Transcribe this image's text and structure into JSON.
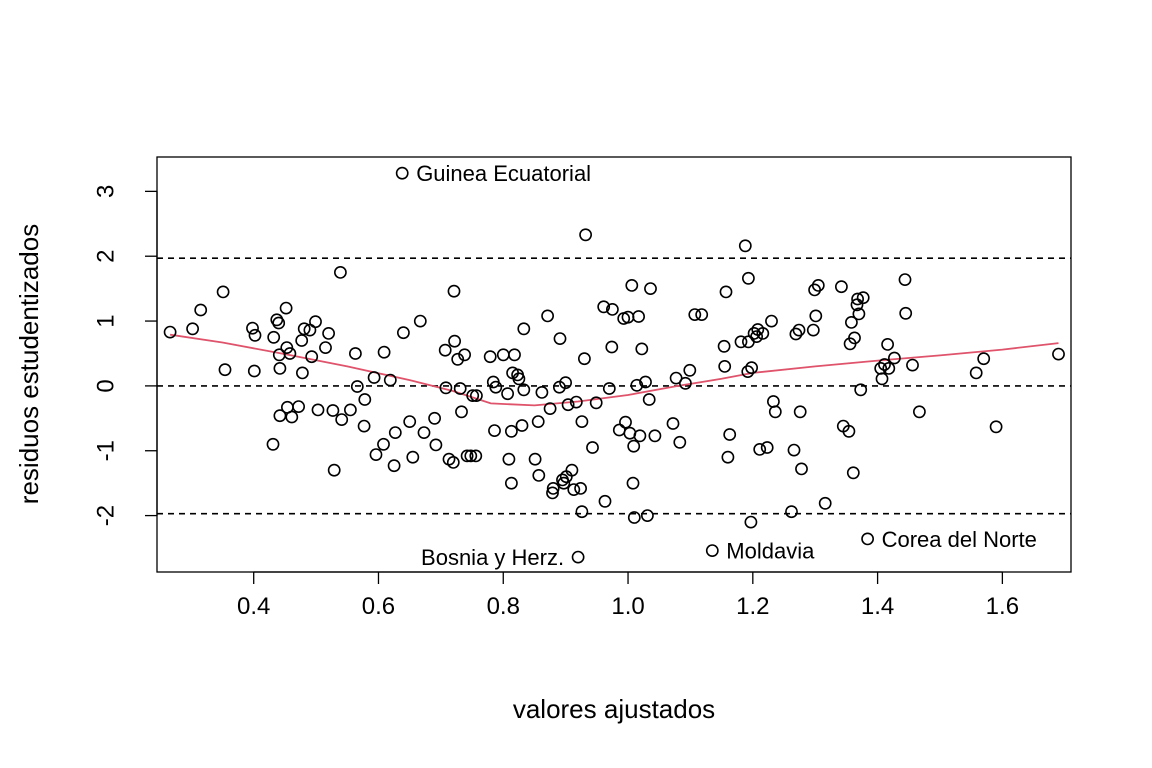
{
  "chart_data": {
    "type": "scatter",
    "title": "",
    "xlabel": "valores ajustados",
    "ylabel": "residuos estudentizados",
    "xlim": [
      0.245,
      1.71
    ],
    "ylim": [
      -2.87,
      3.53
    ],
    "xticks": [
      0.4,
      0.6,
      0.8,
      1.0,
      1.2,
      1.4,
      1.6
    ],
    "xtick_labels": [
      "0.4",
      "0.6",
      "0.8",
      "1.0",
      "1.2",
      "1.4",
      "1.6"
    ],
    "yticks": [
      -2,
      -1,
      0,
      1,
      2,
      3
    ],
    "ytick_labels": [
      "-2",
      "-1",
      "0",
      "1",
      "2",
      "3"
    ],
    "grid": false,
    "reference_lines": [
      1.97,
      0,
      -1.97
    ],
    "colors": {
      "points": "#000000",
      "smooth": "#DF536B",
      "reference": "#000000"
    },
    "points": [
      [
        0.266,
        0.83
      ],
      [
        0.302,
        0.88
      ],
      [
        0.315,
        1.17
      ],
      [
        0.351,
        1.45
      ],
      [
        0.354,
        0.25
      ],
      [
        0.398,
        0.89
      ],
      [
        0.402,
        0.78
      ],
      [
        0.401,
        0.23
      ],
      [
        0.431,
        -0.9
      ],
      [
        0.432,
        0.75
      ],
      [
        0.437,
        1.02
      ],
      [
        0.44,
        0.97
      ],
      [
        0.441,
        0.48
      ],
      [
        0.442,
        0.27
      ],
      [
        0.442,
        -0.46
      ],
      [
        0.452,
        1.2
      ],
      [
        0.453,
        0.59
      ],
      [
        0.454,
        -0.33
      ],
      [
        0.458,
        0.5
      ],
      [
        0.461,
        -0.48
      ],
      [
        0.472,
        -0.32
      ],
      [
        0.477,
        0.7
      ],
      [
        0.478,
        0.2
      ],
      [
        0.481,
        0.88
      ],
      [
        0.49,
        0.86
      ],
      [
        0.493,
        0.45
      ],
      [
        0.499,
        0.99
      ],
      [
        0.503,
        -0.37
      ],
      [
        0.515,
        0.59
      ],
      [
        0.52,
        0.81
      ],
      [
        0.527,
        -0.38
      ],
      [
        0.529,
        -1.3
      ],
      [
        0.539,
        1.75
      ],
      [
        0.541,
        -0.52
      ],
      [
        0.555,
        -0.37
      ],
      [
        0.563,
        0.5
      ],
      [
        0.566,
        -0.01
      ],
      [
        0.577,
        -0.62
      ],
      [
        0.578,
        -0.21
      ],
      [
        0.593,
        0.13
      ],
      [
        0.596,
        -1.06
      ],
      [
        0.608,
        -0.9
      ],
      [
        0.609,
        0.52
      ],
      [
        0.619,
        0.09
      ],
      [
        0.625,
        -1.23
      ],
      [
        0.627,
        -0.72
      ],
      [
        0.64,
        0.82
      ],
      [
        0.65,
        -0.55
      ],
      [
        0.655,
        -1.1
      ],
      [
        0.667,
        1.0
      ],
      [
        0.673,
        -0.72
      ],
      [
        0.69,
        -0.5
      ],
      [
        0.692,
        -0.91
      ],
      [
        0.707,
        0.55
      ],
      [
        0.708,
        -0.03
      ],
      [
        0.713,
        -1.13
      ],
      [
        0.72,
        -1.18
      ],
      [
        0.721,
        1.46
      ],
      [
        0.722,
        0.69
      ],
      [
        0.727,
        0.41
      ],
      [
        0.731,
        -0.04
      ],
      [
        0.733,
        -0.4
      ],
      [
        0.738,
        0.48
      ],
      [
        0.742,
        -1.08
      ],
      [
        0.748,
        -1.08
      ],
      [
        0.751,
        -0.15
      ],
      [
        0.756,
        -1.08
      ],
      [
        0.757,
        -0.15
      ],
      [
        0.779,
        0.45
      ],
      [
        0.784,
        0.06
      ],
      [
        0.786,
        -0.69
      ],
      [
        0.788,
        -0.02
      ],
      [
        0.8,
        0.48
      ],
      [
        0.807,
        -0.12
      ],
      [
        0.809,
        -1.13
      ],
      [
        0.813,
        -0.7
      ],
      [
        0.813,
        -1.5
      ],
      [
        0.815,
        0.2
      ],
      [
        0.818,
        0.48
      ],
      [
        0.823,
        0.17
      ],
      [
        0.825,
        0.11
      ],
      [
        0.83,
        -0.61
      ],
      [
        0.833,
        0.88
      ],
      [
        0.833,
        -0.06
      ],
      [
        0.851,
        -1.13
      ],
      [
        0.856,
        -0.55
      ],
      [
        0.857,
        -1.38
      ],
      [
        0.862,
        -0.1
      ],
      [
        0.871,
        1.08
      ],
      [
        0.875,
        -0.35
      ],
      [
        0.879,
        -1.65
      ],
      [
        0.88,
        -1.58
      ],
      [
        0.89,
        -0.02
      ],
      [
        0.891,
        0.73
      ],
      [
        0.895,
        -1.45
      ],
      [
        0.897,
        -1.5
      ],
      [
        0.9,
        0.05
      ],
      [
        0.901,
        -1.4
      ],
      [
        0.904,
        -0.29
      ],
      [
        0.91,
        -1.3
      ],
      [
        0.913,
        -1.6
      ],
      [
        0.917,
        -0.25
      ],
      [
        0.924,
        -1.58
      ],
      [
        0.926,
        -0.55
      ],
      [
        0.926,
        -1.94
      ],
      [
        0.93,
        0.42
      ],
      [
        0.932,
        2.33
      ],
      [
        0.943,
        -0.95
      ],
      [
        0.949,
        -0.26
      ],
      [
        0.961,
        1.22
      ],
      [
        0.963,
        -1.78
      ],
      [
        0.97,
        -0.04
      ],
      [
        0.974,
        0.6
      ],
      [
        0.975,
        1.18
      ],
      [
        0.986,
        -0.68
      ],
      [
        0.993,
        1.04
      ],
      [
        0.996,
        -0.56
      ],
      [
        1.0,
        1.06
      ],
      [
        1.003,
        -0.73
      ],
      [
        1.006,
        1.55
      ],
      [
        1.008,
        -1.5
      ],
      [
        1.009,
        -0.93
      ],
      [
        1.01,
        -2.03
      ],
      [
        1.014,
        0.01
      ],
      [
        1.017,
        1.07
      ],
      [
        1.019,
        -0.77
      ],
      [
        1.022,
        0.57
      ],
      [
        1.028,
        0.06
      ],
      [
        1.031,
        -2.0
      ],
      [
        1.034,
        -0.21
      ],
      [
        1.036,
        1.5
      ],
      [
        1.043,
        -0.77
      ],
      [
        1.072,
        -0.58
      ],
      [
        1.077,
        0.12
      ],
      [
        1.083,
        -0.87
      ],
      [
        1.092,
        0.04
      ],
      [
        1.099,
        0.24
      ],
      [
        1.107,
        1.1
      ],
      [
        1.118,
        1.1
      ],
      [
        1.154,
        0.61
      ],
      [
        1.155,
        0.3
      ],
      [
        1.157,
        1.45
      ],
      [
        1.16,
        -1.1
      ],
      [
        1.163,
        -0.75
      ],
      [
        1.181,
        0.68
      ],
      [
        1.188,
        2.16
      ],
      [
        1.192,
        0.22
      ],
      [
        1.193,
        1.66
      ],
      [
        1.193,
        0.68
      ],
      [
        1.197,
        -2.1
      ],
      [
        1.198,
        0.28
      ],
      [
        1.202,
        0.81
      ],
      [
        1.206,
        0.76
      ],
      [
        1.208,
        0.87
      ],
      [
        1.211,
        -0.98
      ],
      [
        1.216,
        0.81
      ],
      [
        1.223,
        -0.95
      ],
      [
        1.23,
        1.0
      ],
      [
        1.233,
        -0.24
      ],
      [
        1.236,
        -0.4
      ],
      [
        1.262,
        -1.94
      ],
      [
        1.266,
        -0.99
      ],
      [
        1.269,
        0.8
      ],
      [
        1.274,
        0.86
      ],
      [
        1.276,
        -0.4
      ],
      [
        1.278,
        -1.28
      ],
      [
        1.297,
        0.86
      ],
      [
        1.299,
        1.48
      ],
      [
        1.301,
        1.08
      ],
      [
        1.305,
        1.55
      ],
      [
        1.316,
        -1.81
      ],
      [
        1.342,
        1.53
      ],
      [
        1.345,
        -0.62
      ],
      [
        1.354,
        -0.7
      ],
      [
        1.356,
        0.65
      ],
      [
        1.358,
        0.98
      ],
      [
        1.361,
        -1.34
      ],
      [
        1.363,
        0.74
      ],
      [
        1.367,
        1.25
      ],
      [
        1.368,
        1.34
      ],
      [
        1.37,
        1.11
      ],
      [
        1.373,
        -0.06
      ],
      [
        1.377,
        1.36
      ],
      [
        1.405,
        0.27
      ],
      [
        1.407,
        0.11
      ],
      [
        1.411,
        0.33
      ],
      [
        1.416,
        0.64
      ],
      [
        1.418,
        0.27
      ],
      [
        1.427,
        0.43
      ],
      [
        1.444,
        1.64
      ],
      [
        1.445,
        1.12
      ],
      [
        1.456,
        0.32
      ],
      [
        1.467,
        -0.4
      ],
      [
        1.558,
        0.2
      ],
      [
        1.57,
        0.42
      ],
      [
        1.59,
        -0.63
      ],
      [
        1.69,
        0.49
      ],
      [
        0.638,
        3.28
      ],
      [
        0.92,
        -2.64
      ],
      [
        1.135,
        -2.54
      ],
      [
        1.384,
        -2.36
      ]
    ],
    "labeled_points": [
      {
        "label": "Guinea Ecuatorial",
        "x": 0.638,
        "y": 3.28,
        "side": "right"
      },
      {
        "label": "Bosnia y Herz.",
        "x": 0.92,
        "y": -2.64,
        "side": "left"
      },
      {
        "label": "Moldavia",
        "x": 1.135,
        "y": -2.54,
        "side": "right"
      },
      {
        "label": "Corea del Norte",
        "x": 1.384,
        "y": -2.36,
        "side": "right"
      }
    ],
    "smooth_curve": [
      [
        0.266,
        0.79
      ],
      [
        0.35,
        0.67
      ],
      [
        0.45,
        0.49
      ],
      [
        0.55,
        0.3
      ],
      [
        0.65,
        0.09
      ],
      [
        0.72,
        -0.08
      ],
      [
        0.78,
        -0.27
      ],
      [
        0.85,
        -0.3
      ],
      [
        0.92,
        -0.24
      ],
      [
        1.0,
        -0.14
      ],
      [
        1.08,
        0.0
      ],
      [
        1.15,
        0.11
      ],
      [
        1.2,
        0.2
      ],
      [
        1.3,
        0.3
      ],
      [
        1.4,
        0.39
      ],
      [
        1.5,
        0.47
      ],
      [
        1.6,
        0.56
      ],
      [
        1.69,
        0.66
      ]
    ]
  }
}
